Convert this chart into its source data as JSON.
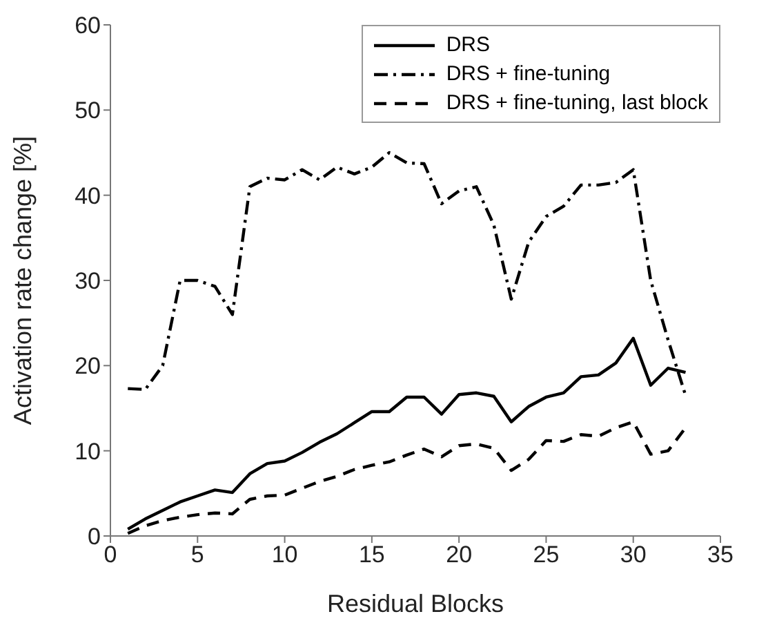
{
  "chart_data": {
    "type": "line",
    "xlabel": "Residual Blocks",
    "ylabel": "Activation rate change [%]",
    "x": [
      1,
      2,
      3,
      4,
      5,
      6,
      7,
      8,
      9,
      10,
      11,
      12,
      13,
      14,
      15,
      16,
      17,
      18,
      19,
      20,
      21,
      22,
      23,
      24,
      25,
      26,
      27,
      28,
      29,
      30,
      31,
      32,
      33
    ],
    "series": [
      {
        "name": "DRS",
        "color": "#000000",
        "line_style": "solid",
        "values": [
          0.8,
          2,
          3,
          4,
          4.7,
          5.4,
          5.1,
          7.3,
          8.5,
          8.8,
          9.8,
          11,
          12,
          13.3,
          14.6,
          14.6,
          16.3,
          16.3,
          14.3,
          16.6,
          16.8,
          16.4,
          13.4,
          15.2,
          16.3,
          16.8,
          18.7,
          18.9,
          20.3,
          23.2,
          17.7,
          19.7,
          19.2
        ]
      },
      {
        "name": "DRS + fine-tuning",
        "color": "#000000",
        "line_style": "dashdot",
        "values": [
          17.3,
          17.2,
          20,
          30,
          30,
          29.3,
          26,
          41,
          42,
          41.8,
          43,
          41.8,
          43.3,
          42.5,
          43.3,
          45,
          43.8,
          43.7,
          39,
          40.5,
          41,
          36.5,
          27.8,
          34.5,
          37.5,
          38.7,
          41.2,
          41.2,
          41.5,
          43,
          30,
          23,
          16.5
        ]
      },
      {
        "name": "DRS + fine-tuning, last block",
        "color": "#000000",
        "line_style": "dashed",
        "values": [
          0.3,
          1.2,
          1.8,
          2.2,
          2.5,
          2.7,
          2.6,
          4.3,
          4.7,
          4.8,
          5.6,
          6.4,
          7,
          7.8,
          8.3,
          8.7,
          9.5,
          10.2,
          9.3,
          10.6,
          10.8,
          10.3,
          7.7,
          9,
          11.2,
          11.1,
          11.9,
          11.7,
          12.7,
          13.4,
          9.6,
          10,
          12.7
        ]
      }
    ],
    "xlim": [
      0,
      35
    ],
    "xticks": [
      0,
      5,
      10,
      15,
      20,
      25,
      30,
      35
    ],
    "ylim": [
      0,
      60
    ],
    "yticks": [
      0,
      10,
      20,
      30,
      40,
      50,
      60
    ],
    "grid": false,
    "legend": "top right",
    "marker": "none"
  }
}
